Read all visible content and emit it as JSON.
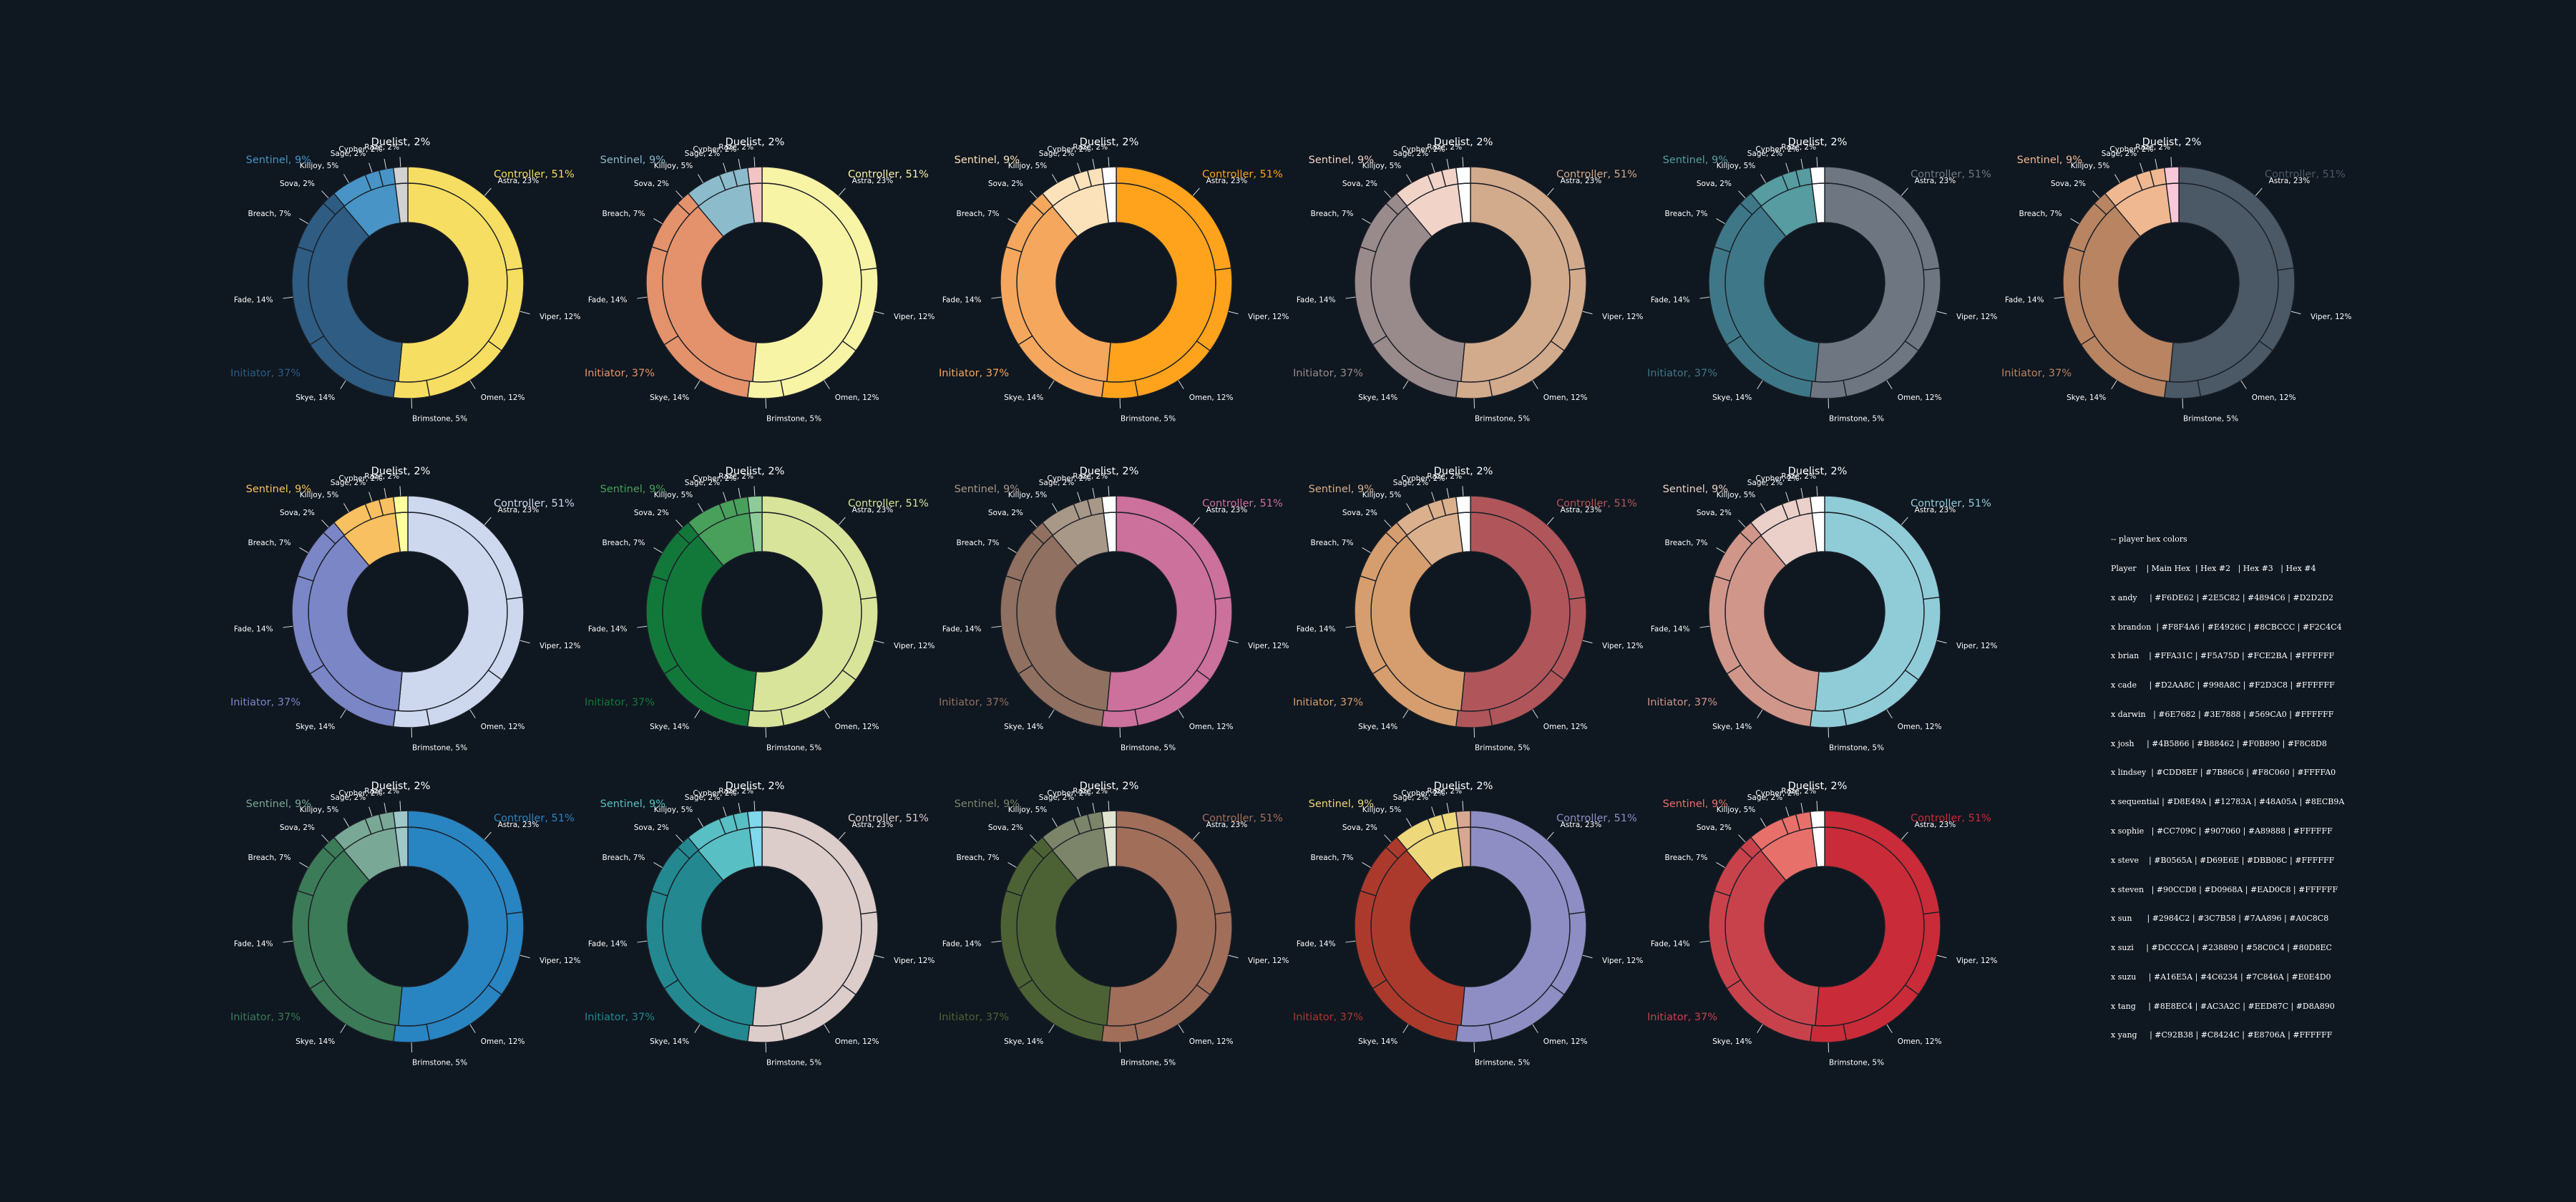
{
  "chart_data": {
    "type": "pie",
    "style": "nested donut: inner ring = role, outer ring = agent",
    "roles": [
      {
        "name": "Controller",
        "value": 51,
        "label": "Controller, 51%"
      },
      {
        "name": "Initiator",
        "value": 37,
        "label": "Initiator, 37%"
      },
      {
        "name": "Sentinel",
        "value": 9,
        "label": "Sentinel, 9%"
      },
      {
        "name": "Duelist",
        "value": 2,
        "label": "Duelist, 2%"
      }
    ],
    "agents": [
      {
        "name": "Astra",
        "role": "Controller",
        "value": 23,
        "label": "Astra, 23%"
      },
      {
        "name": "Viper",
        "role": "Controller",
        "value": 12,
        "label": "Viper, 12%"
      },
      {
        "name": "Omen",
        "role": "Controller",
        "value": 12,
        "label": "Omen, 12%"
      },
      {
        "name": "Brimstone",
        "role": "Controller",
        "value": 5,
        "label": "Brimstone, 5%"
      },
      {
        "name": "Skye",
        "role": "Initiator",
        "value": 14,
        "label": "Skye, 14%"
      },
      {
        "name": "Fade",
        "role": "Initiator",
        "value": 14,
        "label": "Fade, 14%"
      },
      {
        "name": "Breach",
        "role": "Initiator",
        "value": 7,
        "label": "Breach, 7%"
      },
      {
        "name": "Sova",
        "role": "Initiator",
        "value": 2,
        "label": "Sova, 2%"
      },
      {
        "name": "Killjoy",
        "role": "Sentinel",
        "value": 5,
        "label": "Killjoy, 5%"
      },
      {
        "name": "Sage",
        "role": "Sentinel",
        "value": 2,
        "label": "Sage, 2%"
      },
      {
        "name": "Cypher",
        "role": "Sentinel",
        "value": 2,
        "label": "Cypher, 2%"
      },
      {
        "name": "Raze",
        "role": "Duelist",
        "value": 2,
        "label": "Raze, 2%"
      }
    ],
    "charts": [
      {
        "palette": {
          "Controller": "#F6DE62",
          "Initiator": "#2E5C82",
          "Sentinel": "#4894C6",
          "Duelist": "#D2D2D2"
        }
      },
      {
        "palette": {
          "Controller": "#F8F4A6",
          "Initiator": "#E4926C",
          "Sentinel": "#8CBCCC",
          "Duelist": "#F2C4C4"
        }
      },
      {
        "palette": {
          "Controller": "#FFA31C",
          "Initiator": "#F5A75D",
          "Sentinel": "#FCE2BA",
          "Duelist": "#FFFFFF"
        }
      },
      {
        "palette": {
          "Controller": "#D2AA8C",
          "Initiator": "#998A8C",
          "Sentinel": "#F2D3C8",
          "Duelist": "#FFFFFF"
        }
      },
      {
        "palette": {
          "Controller": "#6E7682",
          "Initiator": "#3E7888",
          "Sentinel": "#569CA0",
          "Duelist": "#FFFFFF"
        }
      },
      {
        "palette": {
          "Controller": "#4B5866",
          "Initiator": "#B88462",
          "Sentinel": "#F0B890",
          "Duelist": "#F8C8D8"
        }
      },
      {
        "palette": {
          "Controller": "#CDD8EF",
          "Initiator": "#7B86C6",
          "Sentinel": "#F8C060",
          "Duelist": "#FFFFA0"
        }
      },
      {
        "palette": {
          "Controller": "#D8E49A",
          "Initiator": "#12783A",
          "Sentinel": "#48A05A",
          "Duelist": "#8ECB9A"
        }
      },
      {
        "palette": {
          "Controller": "#CC709C",
          "Initiator": "#907060",
          "Sentinel": "#A89888",
          "Duelist": "#FFFFFF"
        }
      },
      {
        "palette": {
          "Controller": "#B0565A",
          "Initiator": "#D69E6E",
          "Sentinel": "#DBB08C",
          "Duelist": "#FFFFFF"
        }
      },
      {
        "palette": {
          "Controller": "#90CCD8",
          "Initiator": "#D0968A",
          "Sentinel": "#EAD0C8",
          "Duelist": "#FFFFFF"
        }
      },
      {
        "palette": {
          "Controller": "#2984C2",
          "Initiator": "#3C7B58",
          "Sentinel": "#7AA896",
          "Duelist": "#A0C8C8"
        }
      },
      {
        "palette": {
          "Controller": "#DCCCCA",
          "Initiator": "#238890",
          "Sentinel": "#58C0C4",
          "Duelist": "#80D8EC"
        }
      },
      {
        "palette": {
          "Controller": "#A16E5A",
          "Initiator": "#4C6234",
          "Sentinel": "#7C846A",
          "Duelist": "#E0E4D0"
        }
      },
      {
        "palette": {
          "Controller": "#8E8EC4",
          "Initiator": "#AC3A2C",
          "Sentinel": "#EED87C",
          "Duelist": "#D8A890"
        }
      },
      {
        "palette": {
          "Controller": "#C92B38",
          "Initiator": "#C8424C",
          "Sentinel": "#E8706A",
          "Duelist": "#FFFFFF"
        }
      }
    ]
  },
  "palette_table": {
    "title": "-- player hex colors",
    "header": "Player    | Main Hex  | Hex #2   | Hex #3   | Hex #4",
    "rows": [
      "x andy     | #F6DE62 | #2E5C82 | #4894C6 | #D2D2D2",
      "x brandon  | #F8F4A6 | #E4926C | #8CBCCC | #F2C4C4",
      "x brian    | #FFA31C | #F5A75D | #FCE2BA | #FFFFFF",
      "x cade     | #D2AA8C | #998A8C | #F2D3C8 | #FFFFFF",
      "x darwin   | #6E7682 | #3E7888 | #569CA0 | #FFFFFF",
      "x josh     | #4B5866 | #B88462 | #F0B890 | #F8C8D8",
      "x lindsey  | #CDD8EF | #7B86C6 | #F8C060 | #FFFFA0",
      "x sequential | #D8E49A | #12783A | #48A05A | #8ECB9A",
      "x sophie   | #CC709C | #907060 | #A89888 | #FFFFFF",
      "x steve    | #B0565A | #D69E6E | #DBB08C | #FFFFFF",
      "x steven   | #90CCD8 | #D0968A | #EAD0C8 | #FFFFFF",
      "x sun      | #2984C2 | #3C7B58 | #7AA896 | #A0C8C8",
      "x suzi     | #DCCCCA | #238890 | #58C0C4 | #80D8EC",
      "x suzu     | #A16E5A | #4C6234 | #7C846A | #E0E4D0",
      "x tang     | #8E8EC4 | #AC3A2C | #EED87C | #D8A890",
      "x yang     | #C92B38 | #C8424C | #E8706A | #FFFFFF"
    ]
  }
}
